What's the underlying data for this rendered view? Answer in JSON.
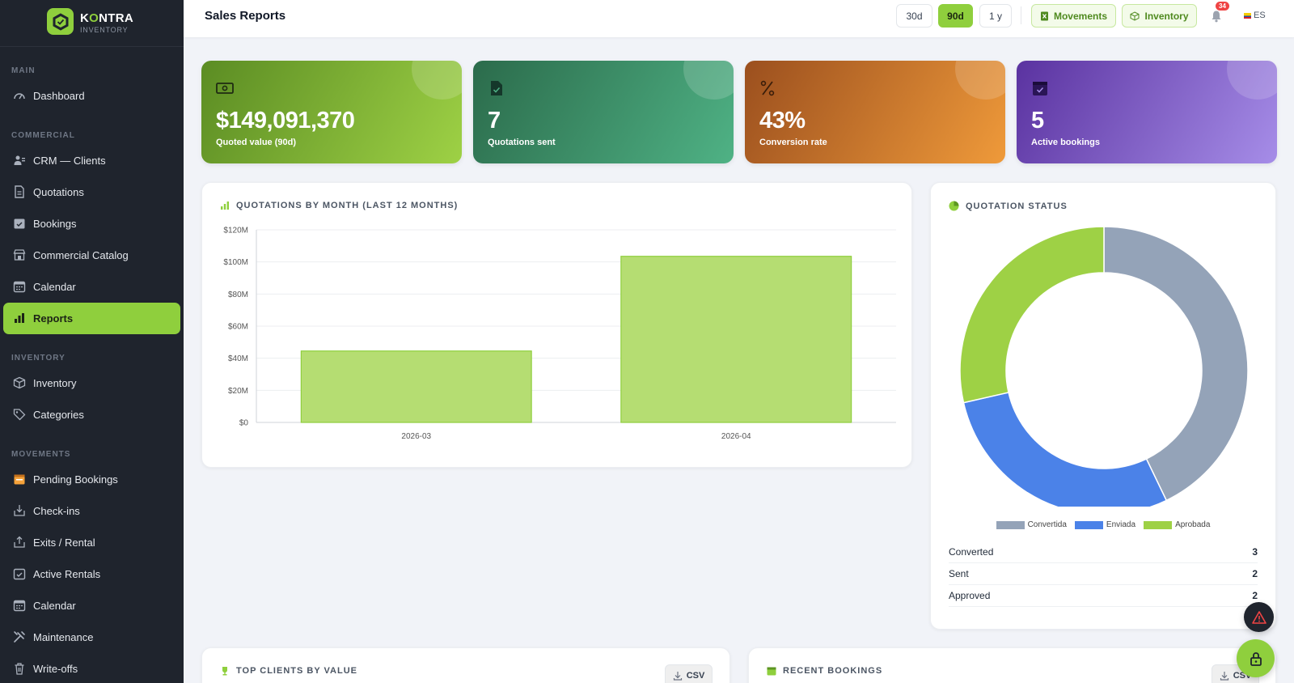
{
  "brand": {
    "name_part1": "K",
    "name_accent": "O",
    "name_part2": "NTRA",
    "subtitle": "INVENTORY"
  },
  "sidebar": {
    "sections": [
      {
        "label": "MAIN",
        "items": [
          {
            "label": "Dashboard",
            "icon": "gauge-icon"
          }
        ]
      },
      {
        "label": "COMMERCIAL",
        "items": [
          {
            "label": "CRM — Clients",
            "icon": "users-icon"
          },
          {
            "label": "Quotations",
            "icon": "file-icon"
          },
          {
            "label": "Bookings",
            "icon": "calendar-check-icon"
          },
          {
            "label": "Commercial Catalog",
            "icon": "store-icon"
          },
          {
            "label": "Calendar",
            "icon": "calendar-icon"
          },
          {
            "label": "Reports",
            "icon": "bar-chart-icon",
            "active": true
          }
        ]
      },
      {
        "label": "INVENTORY",
        "items": [
          {
            "label": "Inventory",
            "icon": "box-icon"
          },
          {
            "label": "Categories",
            "icon": "tags-icon"
          }
        ]
      },
      {
        "label": "MOVEMENTS",
        "items": [
          {
            "label": "Pending Bookings",
            "icon": "calendar-pending-icon"
          },
          {
            "label": "Check-ins",
            "icon": "inbox-in-icon"
          },
          {
            "label": "Exits / Rental",
            "icon": "box-out-icon"
          },
          {
            "label": "Active Rentals",
            "icon": "calendar-active-icon"
          },
          {
            "label": "Calendar",
            "icon": "calendar-icon"
          },
          {
            "label": "Maintenance",
            "icon": "tools-icon"
          },
          {
            "label": "Write-offs",
            "icon": "trash-icon"
          }
        ]
      }
    ]
  },
  "header": {
    "title": "Sales Reports",
    "periods": [
      "30d",
      "90d",
      "1 y"
    ],
    "active_period": "90d",
    "movements_label": "Movements",
    "inventory_label": "Inventory",
    "notifications_count": "34",
    "language": "ES"
  },
  "kpis": {
    "quoted": {
      "value": "$149,091,370",
      "label": "Quoted value (90d)"
    },
    "sent": {
      "value": "7",
      "label": "Quotations sent"
    },
    "conversion": {
      "value": "43%",
      "label": "Conversion rate"
    },
    "bookings": {
      "value": "5",
      "label": "Active bookings"
    }
  },
  "bar_chart": {
    "title": "QUOTATIONS BY MONTH (LAST 12 MONTHS)",
    "chart_data": {
      "type": "bar",
      "categories": [
        "2026-03",
        "2026-04"
      ],
      "values": [
        44.5,
        103.5
      ],
      "ylim": [
        0,
        120
      ],
      "yticks": [
        0,
        20,
        40,
        60,
        80,
        100,
        120
      ],
      "ytick_labels": [
        "$0",
        "$20M",
        "$40M",
        "$60M",
        "$80M",
        "$100M",
        "$120M"
      ],
      "bar_color": "#b5dd72",
      "bar_border": "#8fcf3d",
      "grid": true
    }
  },
  "status_chart": {
    "title": "QUOTATION STATUS",
    "chart_data": {
      "type": "pie",
      "labels": [
        "Convertida",
        "Enviada",
        "Aprobada"
      ],
      "values": [
        3,
        2,
        2
      ],
      "colors": [
        "#94a3b8",
        "#4b82e8",
        "#9ed145"
      ],
      "legend_position": "bottom"
    },
    "summary": [
      {
        "label": "Converted",
        "value": "3"
      },
      {
        "label": "Sent",
        "value": "2"
      },
      {
        "label": "Approved",
        "value": "2"
      }
    ]
  },
  "panels": {
    "top_clients_title": "TOP CLIENTS BY VALUE",
    "recent_bookings_title": "RECENT BOOKINGS",
    "csv_label": "CSV"
  },
  "colors": {
    "accent": "#8fcf3d",
    "sidebar_bg": "#1f242d",
    "page_bg": "#f1f3f8"
  }
}
